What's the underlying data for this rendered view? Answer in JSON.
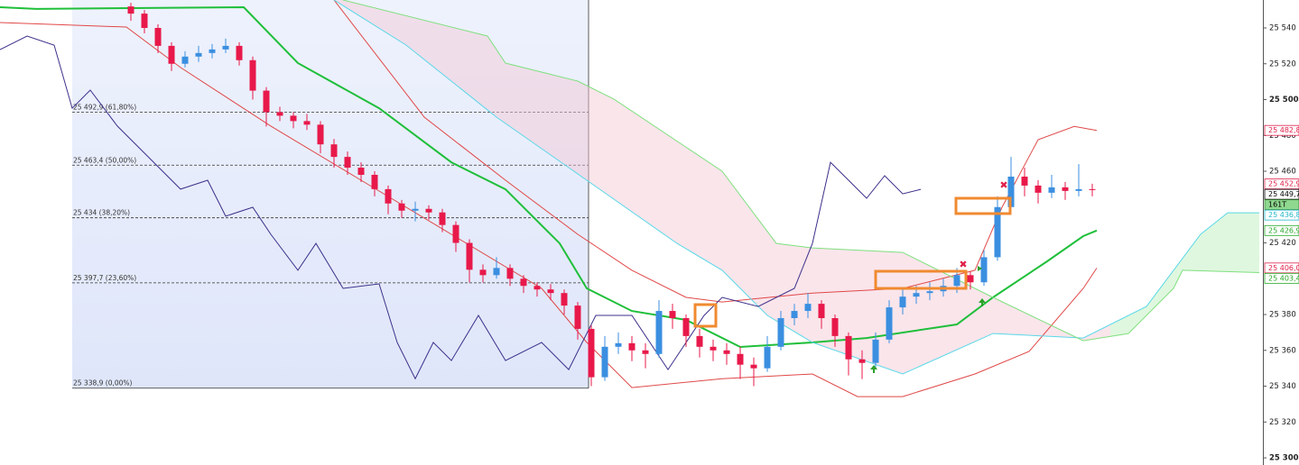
{
  "chart_data": {
    "type": "candlestick",
    "xlim": [
      0,
      280
    ],
    "ylim": [
      25296,
      25555.6
    ],
    "yticks": [
      {
        "value": 25540,
        "label": "25 540"
      },
      {
        "value": 25520,
        "label": "25 520"
      },
      {
        "value": 25500,
        "label": "25 500"
      },
      {
        "value": 25480,
        "label": "25 480"
      },
      {
        "value": 25460,
        "label": "25 460"
      },
      {
        "value": 25420,
        "label": "25 420"
      },
      {
        "value": 25380,
        "label": "25 380"
      },
      {
        "value": 25360,
        "label": "25 360"
      },
      {
        "value": 25340,
        "label": "25 340"
      },
      {
        "value": 25320,
        "label": "25 320"
      },
      {
        "value": 25300,
        "label": "25 300"
      }
    ],
    "up_color": "#3b8fe0",
    "down_color": "#e8194a",
    "x": [
      29,
      32,
      35,
      38,
      41,
      44,
      47,
      50,
      53,
      56,
      59,
      62,
      65,
      68,
      71,
      74,
      77,
      80,
      83,
      86,
      89,
      92,
      95,
      98,
      101,
      104,
      107,
      110,
      113,
      116,
      119,
      122,
      125,
      128,
      131,
      134,
      137,
      140,
      143,
      146,
      149,
      152,
      155,
      158,
      161,
      164,
      167,
      170,
      173,
      176,
      179,
      182,
      185,
      188,
      191,
      194,
      197,
      200,
      203,
      206,
      209,
      212,
      215,
      218,
      221,
      224,
      227,
      230,
      233,
      236,
      239,
      242
    ],
    "open": [
      25552,
      25548,
      25540,
      25530,
      25520,
      25524,
      25526,
      25528,
      25530,
      25522,
      25505,
      25493,
      25491,
      25488,
      25486,
      25475,
      25468,
      25462,
      25458,
      25450,
      25442,
      25438,
      25439,
      25437,
      25430,
      25420,
      25405,
      25402,
      25406,
      25400,
      25396,
      25394,
      25392,
      25385,
      25372,
      25345,
      25362,
      25364,
      25360,
      25358,
      25382,
      25378,
      25368,
      25362,
      25360,
      25358,
      25352,
      25350,
      25362,
      25378,
      25382,
      25386,
      25378,
      25368,
      25355,
      25353,
      25366,
      25384,
      25390,
      25392,
      25393,
      25396,
      25402,
      25398,
      25412,
      25440,
      25457,
      25452,
      25448,
      25451,
      25449,
      25450
    ],
    "high": [
      25554,
      25550,
      25542,
      25532,
      25527,
      25530,
      25531,
      25534,
      25532,
      25524,
      25507,
      25496,
      25493,
      25492,
      25488,
      25478,
      25471,
      25465,
      25460,
      25452,
      25444,
      25443,
      25441,
      25439,
      25432,
      25422,
      25408,
      25412,
      25408,
      25402,
      25398,
      25397,
      25394,
      25387,
      25374,
      25368,
      25370,
      25368,
      25364,
      25388,
      25386,
      25380,
      25372,
      25366,
      25364,
      25362,
      25356,
      25368,
      25382,
      25386,
      25392,
      25388,
      25380,
      25370,
      25360,
      25370,
      25388,
      25394,
      25396,
      25398,
      25400,
      25406,
      25404,
      25416,
      25446,
      25468,
      25462,
      25455,
      25458,
      25454,
      25464,
      25453
    ],
    "low": [
      25544,
      25537,
      25526,
      25516,
      25518,
      25521,
      25523,
      25526,
      25519,
      25500,
      25485,
      25488,
      25484,
      25483,
      25470,
      25462,
      25458,
      25454,
      25446,
      25436,
      25434,
      25432,
      25433,
      25426,
      25415,
      25398,
      25398,
      25400,
      25396,
      25392,
      25390,
      25388,
      25380,
      25366,
      25340,
      25343,
      25358,
      25354,
      25350,
      25356,
      25372,
      25362,
      25356,
      25354,
      25352,
      25344,
      25340,
      25348,
      25360,
      25374,
      25378,
      25372,
      25362,
      25346,
      25344,
      25350,
      25364,
      25380,
      25386,
      25388,
      25390,
      25392,
      25394,
      25396,
      25410,
      25438,
      25446,
      25442,
      25445,
      25444,
      25446,
      25446
    ],
    "close": [
      25548,
      25540,
      25530,
      25520,
      25524,
      25526,
      25528,
      25530,
      25522,
      25505,
      25493,
      25491,
      25488,
      25486,
      25475,
      25468,
      25462,
      25458,
      25450,
      25442,
      25438,
      25439,
      25437,
      25430,
      25420,
      25405,
      25402,
      25406,
      25400,
      25396,
      25394,
      25392,
      25385,
      25372,
      25345,
      25362,
      25364,
      25360,
      25358,
      25382,
      25378,
      25368,
      25362,
      25360,
      25358,
      25352,
      25350,
      25362,
      25378,
      25382,
      25386,
      25378,
      25368,
      25355,
      25353,
      25366,
      25384,
      25390,
      25392,
      25393,
      25396,
      25402,
      25398,
      25412,
      25440,
      25457,
      25452,
      25448,
      25451,
      25449,
      25450,
      25449.7
    ],
    "lines": [
      {
        "color": "#e04848",
        "width": 1,
        "x": [
          74,
          94,
          112,
          128,
          140,
          152,
          160,
          180,
          200,
          216,
          222,
          230,
          238,
          243
        ],
        "values": [
          25555.6,
          25490.2,
          25455,
          25424.8,
          25404.7,
          25389.6,
          25387,
          25392,
          25394.6,
          25404.7,
          25439.9,
          25477.6,
          25485,
          25482.8
        ]
      },
      {
        "color": "#e04848",
        "width": 1,
        "x": [
          0,
          28,
          40,
          60,
          80,
          100,
          120,
          130,
          140,
          160,
          180,
          190,
          200,
          216,
          228,
          240,
          243
        ],
        "values": [
          25543,
          25540.5,
          25517.9,
          25485.2,
          25455,
          25424.8,
          25394.6,
          25364.4,
          25339.2,
          25344.2,
          25346.8,
          25334.2,
          25334.2,
          25346.8,
          25359.4,
          25394.6,
          25406
        ]
      },
      {
        "color": "#1fbf3a",
        "width": 2,
        "x": [
          0,
          8,
          54,
          66,
          84,
          100,
          112,
          124,
          130,
          140,
          152,
          164,
          180,
          192,
          212,
          220,
          232,
          240,
          243
        ],
        "values": [
          25551.6,
          25550.6,
          25551.6,
          25520.4,
          25495.2,
          25465,
          25449.9,
          25419.7,
          25394.6,
          25382,
          25377,
          25361.9,
          25364.4,
          25366.9,
          25374.5,
          25389.6,
          25409.7,
          25423.8,
          25426.9
        ]
      },
      {
        "color": "#5ad8e8",
        "width": 1,
        "x": [
          74,
          90,
          110,
          130,
          150,
          160,
          170,
          180,
          200,
          220,
          240,
          254,
          266,
          272,
          279
        ],
        "values": [
          25555.6,
          25530.4,
          25490.2,
          25455,
          25419.7,
          25404.7,
          25379.5,
          25364.4,
          25346.8,
          25369.4,
          25366.9,
          25384.5,
          25424.8,
          25436.8,
          25436.8
        ]
      },
      {
        "color": "#7fe07f",
        "width": 1,
        "x": [
          76,
          108,
          112,
          128,
          136,
          160,
          172,
          180,
          200,
          220,
          240,
          250,
          260,
          262,
          279
        ],
        "values": [
          25555.6,
          25535.5,
          25520.4,
          25510.3,
          25500.3,
          25460,
          25419.7,
          25417.2,
          25414.7,
          25389.6,
          25365.4,
          25369.4,
          25394.6,
          25404.7,
          25403.4
        ]
      },
      {
        "color": "#3c2f8a",
        "width": 1,
        "x": [
          0,
          6,
          12,
          16,
          20,
          26,
          32,
          40,
          46,
          50,
          56,
          60,
          66,
          70,
          76,
          84,
          88,
          92,
          96,
          100,
          106,
          112,
          120,
          126,
          132,
          140,
          148,
          156,
          160,
          168,
          176,
          180,
          184,
          188,
          192,
          196,
          200,
          204
        ],
        "values": [
          25527.9,
          25535.5,
          25530.4,
          25495.2,
          25505.3,
          25485.2,
          25470.1,
          25450,
          25455,
          25434.9,
          25439.9,
          25424.8,
          25404.7,
          25419.7,
          25394.6,
          25397.1,
          25364.4,
          25344.2,
          25364.4,
          25354.3,
          25379.5,
          25354.3,
          25364.4,
          25349.3,
          25379.5,
          25379.5,
          25349.3,
          25379.5,
          25389.6,
          25384.5,
          25394.6,
          25419.7,
          25465,
          25455,
          25444.9,
          25457.5,
          25447.4,
          25449.9
        ]
      }
    ],
    "fib_range": [
      16,
      130.4
    ],
    "fib_levels": {
      "values": [
        25492.9,
        25463.4,
        25434,
        25397.7,
        25338.9
      ],
      "value_labels": [
        "25 492,9 (61,80%)",
        "25 463,4 (50,00%)",
        "25 434 (38,20%)",
        "25 397,7 (23,60%)",
        "25 338,9 (0,00%)"
      ]
    },
    "price_tags": {
      "values": [
        25482.8,
        25452.9,
        25449.7,
        25436.8,
        25426.9,
        25406.0,
        25403.4
      ],
      "value_labels": [
        "25 482,8",
        "25 452,9",
        "25 449,7",
        "25 436,8",
        "25 426,9",
        "25 406,0",
        "25 403,4"
      ],
      "colors": [
        "#e0204a",
        "#e0204a",
        "#000000",
        "#22b8cc",
        "#26a826",
        "#e0204a",
        "#26a826"
      ]
    },
    "timer_tag": {
      "label": "161T",
      "color": "#8fd88f"
    }
  }
}
